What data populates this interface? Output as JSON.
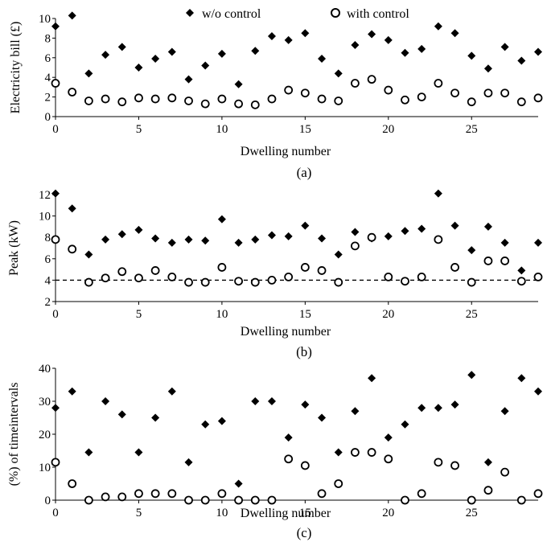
{
  "legend": {
    "series_a": "w/o control",
    "series_b": "with control"
  },
  "chart_data": [
    {
      "type": "scatter",
      "caption": "(a)",
      "xlabel": "Dwelling number",
      "ylabel": "Electricity bill (£)",
      "xlim": [
        0,
        29
      ],
      "ylim": [
        0,
        10
      ],
      "xticks": [
        "0",
        "5",
        "10",
        "15",
        "20",
        "25"
      ],
      "yticks": [
        "0",
        "2",
        "4",
        "6",
        "8",
        "10"
      ],
      "x": [
        0,
        1,
        2,
        3,
        4,
        5,
        6,
        7,
        8,
        9,
        10,
        11,
        12,
        13,
        14,
        15,
        16,
        17,
        18,
        19,
        20,
        21,
        22,
        23,
        24,
        25,
        26,
        27,
        28,
        29
      ],
      "series": [
        {
          "name": "w/o control",
          "marker": "filled-diamond",
          "values": [
            9.2,
            10.3,
            4.4,
            6.3,
            7.1,
            5.0,
            5.9,
            6.6,
            3.8,
            5.2,
            6.4,
            3.3,
            6.7,
            8.2,
            7.8,
            8.5,
            5.9,
            4.4,
            7.3,
            8.4,
            7.8,
            6.5,
            6.9,
            9.2,
            8.5,
            6.2,
            4.9,
            7.1,
            5.7,
            6.6
          ]
        },
        {
          "name": "with control",
          "marker": "open-circle",
          "values": [
            3.4,
            2.5,
            1.6,
            1.8,
            1.5,
            1.9,
            1.8,
            1.9,
            1.6,
            1.3,
            1.8,
            1.3,
            1.2,
            1.8,
            2.7,
            2.4,
            1.8,
            1.6,
            3.4,
            3.8,
            2.7,
            1.7,
            2.0,
            3.4,
            2.4,
            1.5,
            2.4,
            2.4,
            1.5,
            1.9
          ]
        }
      ]
    },
    {
      "type": "scatter",
      "caption": "(b)",
      "xlabel": "Dwelling number",
      "ylabel": "Peak (kW)",
      "xlim": [
        0,
        29
      ],
      "ylim": [
        2,
        12
      ],
      "xticks": [
        "0",
        "5",
        "10",
        "15",
        "20",
        "25"
      ],
      "yticks": [
        "2",
        "4",
        "6",
        "8",
        "10",
        "12"
      ],
      "reference_line": {
        "y": 4,
        "style": "dashed"
      },
      "x": [
        0,
        1,
        2,
        3,
        4,
        5,
        6,
        7,
        8,
        9,
        10,
        11,
        12,
        13,
        14,
        15,
        16,
        17,
        18,
        19,
        20,
        21,
        22,
        23,
        24,
        25,
        26,
        27,
        28,
        29
      ],
      "series": [
        {
          "name": "w/o control",
          "marker": "filled-diamond",
          "values": [
            12.1,
            10.7,
            6.4,
            7.8,
            8.3,
            8.7,
            7.9,
            7.5,
            7.8,
            7.7,
            9.7,
            7.5,
            7.8,
            8.2,
            8.1,
            9.1,
            7.9,
            6.4,
            8.5,
            7.9,
            8.1,
            8.6,
            8.8,
            12.1,
            9.1,
            6.8,
            9.0,
            7.5,
            4.9,
            7.5
          ]
        },
        {
          "name": "with control",
          "marker": "open-circle",
          "values": [
            7.8,
            6.9,
            3.8,
            4.2,
            4.8,
            4.2,
            4.9,
            4.3,
            3.8,
            3.8,
            5.2,
            3.9,
            3.8,
            4.0,
            4.3,
            5.2,
            4.9,
            3.8,
            7.2,
            8.0,
            4.3,
            3.9,
            4.3,
            7.8,
            5.2,
            3.8,
            5.8,
            5.8,
            3.9,
            4.3
          ]
        }
      ]
    },
    {
      "type": "scatter",
      "caption": "(c)",
      "xlabel": "Dwelling  number",
      "ylabel": "(%) of timeintervals",
      "xlim": [
        0,
        29
      ],
      "ylim": [
        0,
        40
      ],
      "xticks": [
        "0",
        "5",
        "10",
        "15",
        "20",
        "25"
      ],
      "yticks": [
        "0",
        "10",
        "20",
        "30",
        "40"
      ],
      "x": [
        0,
        1,
        2,
        3,
        4,
        5,
        6,
        7,
        8,
        9,
        10,
        11,
        12,
        13,
        14,
        15,
        16,
        17,
        18,
        19,
        20,
        21,
        22,
        23,
        24,
        25,
        26,
        27,
        28,
        29
      ],
      "series": [
        {
          "name": "w/o control",
          "marker": "filled-diamond",
          "values": [
            28,
            33,
            14.5,
            30,
            26,
            14.5,
            25,
            33,
            11.5,
            23,
            24,
            5,
            30,
            30,
            19,
            29,
            25,
            14.5,
            27,
            37,
            19,
            23,
            28,
            28,
            29,
            38,
            11.5,
            27,
            37,
            33
          ]
        },
        {
          "name": "with control",
          "marker": "open-circle",
          "values": [
            11.5,
            5,
            0,
            1,
            1,
            2,
            2,
            2,
            0,
            0,
            2,
            0,
            0,
            0,
            12.5,
            10.5,
            2,
            5,
            14.5,
            14.5,
            12.5,
            0,
            2,
            11.5,
            10.5,
            0,
            3,
            8.5,
            0,
            2
          ]
        }
      ]
    }
  ]
}
